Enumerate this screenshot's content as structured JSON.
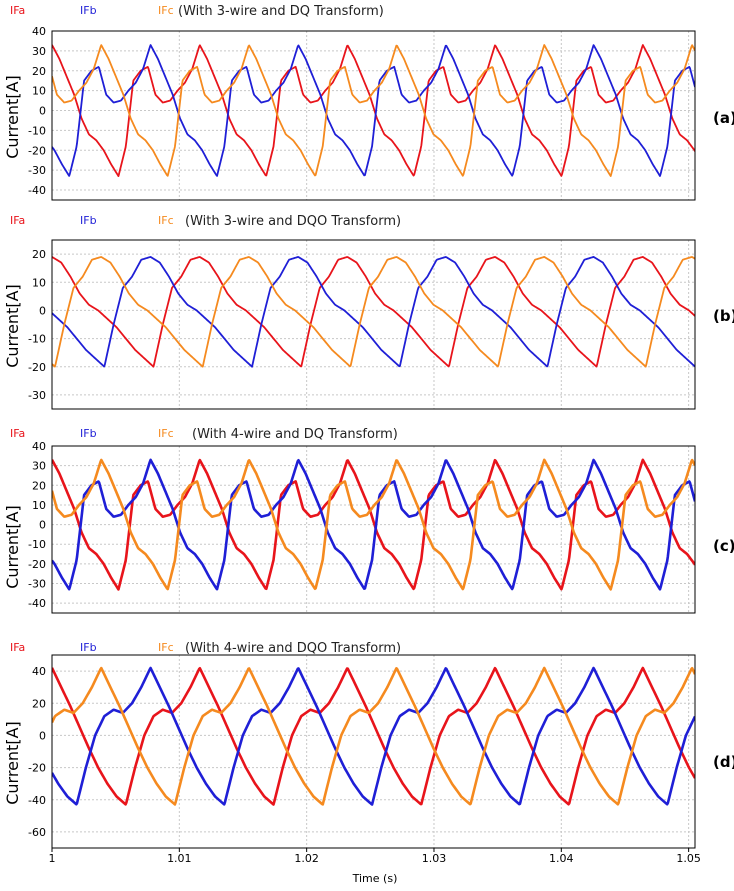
{
  "chart_data": [
    {
      "type": "line",
      "panel_label": "(a)",
      "title": "(With 3-wire and DQ Transform)",
      "ylabel": "Current[A]",
      "ylim": [
        -45,
        40
      ],
      "yticks": [
        40,
        30,
        20,
        10,
        0,
        -10,
        -20,
        -30,
        -40
      ],
      "grid": true,
      "legend_placement": "top-left",
      "period_s": 0.0116,
      "series": [
        {
          "name": "IFa",
          "color": "#e8141b",
          "phase": 0.0,
          "values_one_period": [
            33,
            26,
            17,
            8,
            -4,
            -12,
            -15,
            -20,
            -27,
            -33,
            -18,
            15,
            20,
            22,
            8,
            4,
            5,
            10,
            14,
            21,
            33
          ]
        },
        {
          "name": "IFb",
          "color": "#1f1fd6",
          "phase": 0.333,
          "values_one_period": [
            33,
            26,
            17,
            8,
            -4,
            -12,
            -15,
            -20,
            -27,
            -33,
            -18,
            15,
            20,
            22,
            8,
            4,
            5,
            10,
            14,
            21,
            33
          ]
        },
        {
          "name": "IFc",
          "color": "#f58a1f",
          "phase": 0.667,
          "values_one_period": [
            33,
            26,
            17,
            8,
            -4,
            -12,
            -15,
            -20,
            -27,
            -33,
            -18,
            15,
            20,
            22,
            8,
            4,
            5,
            10,
            14,
            21,
            33
          ]
        }
      ]
    },
    {
      "type": "line",
      "panel_label": "(b)",
      "title": "(With 3-wire and DQO Transform)",
      "ylabel": "Current[A]",
      "ylim": [
        -35,
        25
      ],
      "yticks": [
        20,
        10,
        0,
        -10,
        -20,
        -30
      ],
      "grid": true,
      "legend_placement": "top-left",
      "period_s": 0.0116,
      "series": [
        {
          "name": "IFa",
          "color": "#e8141b",
          "phase": 0.0,
          "values_one_period": [
            19,
            17,
            12,
            6,
            2,
            0,
            -3,
            -6,
            -10,
            -14,
            -17,
            -20,
            -5,
            8,
            12,
            18,
            19
          ]
        },
        {
          "name": "IFb",
          "color": "#1f1fd6",
          "phase": 0.333,
          "values_one_period": [
            19,
            17,
            12,
            6,
            2,
            0,
            -3,
            -6,
            -10,
            -14,
            -17,
            -20,
            -5,
            8,
            12,
            18,
            19
          ]
        },
        {
          "name": "IFc",
          "color": "#f58a1f",
          "phase": 0.667,
          "values_one_period": [
            19,
            17,
            12,
            6,
            2,
            0,
            -3,
            -6,
            -10,
            -14,
            -17,
            -20,
            -5,
            8,
            12,
            18,
            19
          ]
        }
      ]
    },
    {
      "type": "line",
      "panel_label": "(c)",
      "title": "(With 4-wire and DQ Transform)",
      "ylabel": "Current[A]",
      "ylim": [
        -45,
        40
      ],
      "yticks": [
        40,
        30,
        20,
        10,
        0,
        -10,
        -20,
        -30,
        -40
      ],
      "grid": true,
      "legend_placement": "top-left",
      "period_s": 0.0116,
      "series": [
        {
          "name": "IFa",
          "color": "#e8141b",
          "phase": 0.0,
          "values_one_period": [
            33,
            26,
            17,
            8,
            -4,
            -12,
            -15,
            -20,
            -27,
            -33,
            -18,
            15,
            20,
            22,
            8,
            4,
            5,
            10,
            14,
            21,
            33
          ]
        },
        {
          "name": "IFb",
          "color": "#1f1fd6",
          "phase": 0.333,
          "values_one_period": [
            33,
            26,
            17,
            8,
            -4,
            -12,
            -15,
            -20,
            -27,
            -33,
            -18,
            15,
            20,
            22,
            8,
            4,
            5,
            10,
            14,
            21,
            33
          ]
        },
        {
          "name": "IFc",
          "color": "#f58a1f",
          "phase": 0.667,
          "values_one_period": [
            33,
            26,
            17,
            8,
            -4,
            -12,
            -15,
            -20,
            -27,
            -33,
            -18,
            15,
            20,
            22,
            8,
            4,
            5,
            10,
            14,
            21,
            33
          ]
        }
      ]
    },
    {
      "type": "line",
      "panel_label": "(d)",
      "title": "(With 4-wire and DQO Transform)",
      "ylabel": "Current[A]",
      "ylim": [
        -70,
        50
      ],
      "yticks": [
        40,
        20,
        0,
        -20,
        -40,
        -60
      ],
      "grid": true,
      "legend_placement": "top-left",
      "period_s": 0.0116,
      "series": [
        {
          "name": "IFa",
          "color": "#e8141b",
          "phase": 0.0,
          "values_one_period": [
            42,
            30,
            18,
            5,
            -8,
            -20,
            -30,
            -38,
            -43,
            -20,
            0,
            12,
            16,
            14,
            20,
            30,
            42
          ]
        },
        {
          "name": "IFb",
          "color": "#1f1fd6",
          "phase": 0.333,
          "values_one_period": [
            42,
            30,
            18,
            5,
            -8,
            -20,
            -30,
            -38,
            -43,
            -20,
            0,
            12,
            16,
            14,
            20,
            30,
            42
          ]
        },
        {
          "name": "IFc",
          "color": "#f58a1f",
          "phase": 0.667,
          "values_one_period": [
            42,
            30,
            18,
            5,
            -8,
            -20,
            -30,
            -38,
            -43,
            -20,
            0,
            12,
            16,
            14,
            20,
            30,
            42
          ]
        }
      ]
    }
  ],
  "xaxis": {
    "label": "Time (s)",
    "xlim": [
      1.0,
      1.0505
    ],
    "ticks": [
      1.0,
      1.01,
      1.02,
      1.03,
      1.04,
      1.05
    ],
    "tick_labels": [
      "1",
      "1.01",
      "1.02",
      "1.03",
      "1.04",
      "1.05"
    ]
  }
}
